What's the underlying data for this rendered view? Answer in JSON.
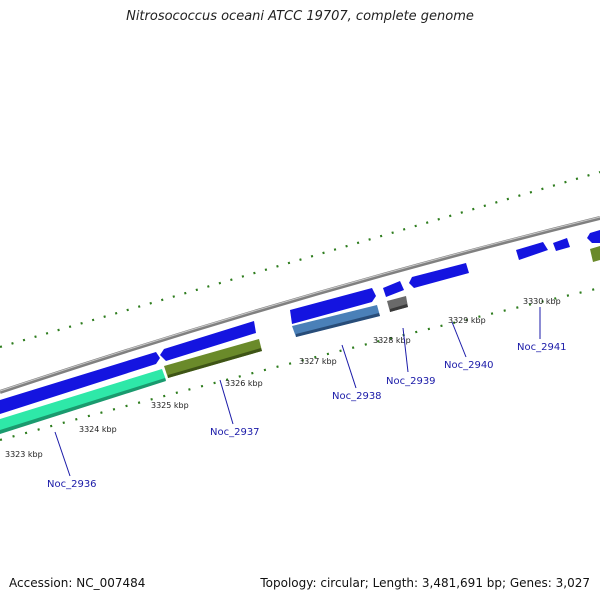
{
  "header": {
    "title": "Nitrosococcus oceani ATCC 19707, complete genome"
  },
  "footer": {
    "accession": "Accession: NC_007484",
    "summary": "Topology: circular; Length: 3,481,691 bp; Genes: 3,027"
  },
  "colors": {
    "background": "#ffffff",
    "backbone": "#8a8a8a",
    "gene_blue": "#1414e0",
    "gene_cyan": "#2ee8a8",
    "gene_olive": "#6a8a2a",
    "gene_steel": "#4a80b8",
    "gene_gray": "#6a6a6a",
    "tick_green": "#2e7d1e",
    "gene_label": "#1a1aa8"
  },
  "scale": {
    "kbp_labels": [
      "3323 kbp",
      "3324 kbp",
      "3325 kbp",
      "3326 kbp",
      "3327 kbp",
      "3328 kbp",
      "3329 kbp",
      "3330 kbp"
    ]
  },
  "genes": [
    {
      "name": "Noc_2936",
      "color": "gene_cyan"
    },
    {
      "name": "Noc_2937",
      "color": "gene_olive"
    },
    {
      "name": "Noc_2938",
      "color": "gene_steel"
    },
    {
      "name": "Noc_2939",
      "color": "gene_gray"
    },
    {
      "name": "Noc_2940",
      "color": "gene_blue"
    },
    {
      "name": "Noc_2941",
      "color": "gene_blue"
    }
  ]
}
